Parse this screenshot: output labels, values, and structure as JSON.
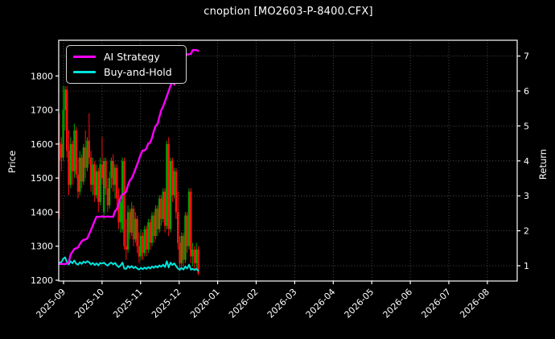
{
  "title": "cnoption [MO2603-P-8400.CFX]",
  "legend": {
    "items": [
      {
        "label": "AI Strategy",
        "color_key": "ai_line"
      },
      {
        "label": "Buy-and-Hold",
        "color_key": "buy_hold_line"
      }
    ],
    "position": "upper left"
  },
  "axes": {
    "left_label": "Price",
    "right_label": "Return",
    "price_ticks": [
      1200,
      1300,
      1400,
      1500,
      1600,
      1700,
      1800
    ],
    "return_ticks": [
      1,
      2,
      3,
      4,
      5,
      6,
      7
    ],
    "x_tick_labels": [
      "2025-09",
      "2025-10",
      "2025-11",
      "2025-12",
      "2026-01",
      "2026-02",
      "2026-03",
      "2026-04",
      "2026-05",
      "2026-06",
      "2026-07",
      "2026-08"
    ]
  },
  "colors": {
    "background": "#000000",
    "text": "#ffffff",
    "spine": "#ffffff",
    "grid": "#5f5f5f",
    "ai_line": "#ff00ff",
    "buy_hold_line": "#00e5dd",
    "candle_up": "#00a000",
    "candle_down": "#fd1010"
  },
  "chart_data": {
    "type": "candlestick+line",
    "title": "cnoption [MO2603-P-8400.CFX]",
    "xlabel": "",
    "grid": true,
    "legend_position": "upper left",
    "price_axis": {
      "label": "Price",
      "tick_values": [
        1200,
        1300,
        1400,
        1500,
        1600,
        1700,
        1800
      ],
      "approx_range": [
        1190,
        1905
      ]
    },
    "return_axis": {
      "label": "Return",
      "tick_values": [
        1,
        2,
        3,
        4,
        5,
        6,
        7
      ],
      "approx_range": [
        0.6,
        7.45
      ]
    },
    "x_axis": {
      "tick_labels": [
        "2025-09",
        "2025-10",
        "2025-11",
        "2025-12",
        "2026-01",
        "2026-02",
        "2026-03",
        "2026-04",
        "2026-05",
        "2026-06",
        "2026-07",
        "2026-08"
      ],
      "data_start": "2025-09-01",
      "data_end": "2025-12-15"
    },
    "dates": [
      "2025-09-01",
      "2025-09-02",
      "2025-09-03",
      "2025-09-04",
      "2025-09-05",
      "2025-09-08",
      "2025-09-09",
      "2025-09-10",
      "2025-09-11",
      "2025-09-12",
      "2025-09-15",
      "2025-09-16",
      "2025-09-17",
      "2025-09-18",
      "2025-09-19",
      "2025-09-22",
      "2025-09-23",
      "2025-09-24",
      "2025-09-25",
      "2025-09-26",
      "2025-09-29",
      "2025-09-30",
      "2025-10-01",
      "2025-10-02",
      "2025-10-03",
      "2025-10-06",
      "2025-10-07",
      "2025-10-08",
      "2025-10-09",
      "2025-10-10",
      "2025-10-13",
      "2025-10-14",
      "2025-10-15",
      "2025-10-16",
      "2025-10-17",
      "2025-10-20",
      "2025-10-21",
      "2025-10-22",
      "2025-10-23",
      "2025-10-24",
      "2025-10-27",
      "2025-10-28",
      "2025-10-29",
      "2025-10-30",
      "2025-10-31",
      "2025-11-03",
      "2025-11-04",
      "2025-11-05",
      "2025-11-06",
      "2025-11-07",
      "2025-11-10",
      "2025-11-11",
      "2025-11-12",
      "2025-11-13",
      "2025-11-14",
      "2025-11-17",
      "2025-11-18",
      "2025-11-19",
      "2025-11-20",
      "2025-11-21",
      "2025-11-24",
      "2025-11-25",
      "2025-11-26",
      "2025-11-27",
      "2025-11-28",
      "2025-12-01",
      "2025-12-02",
      "2025-12-03",
      "2025-12-04",
      "2025-12-05",
      "2025-12-08",
      "2025-12-09",
      "2025-12-10",
      "2025-12-11",
      "2025-12-12",
      "2025-12-15"
    ],
    "candles_ohlc": [
      [
        1605,
        1690,
        1380,
        1550
      ],
      [
        1600,
        1620,
        1520,
        1560
      ],
      [
        1560,
        1770,
        1550,
        1700
      ],
      [
        1700,
        1770,
        1640,
        1760
      ],
      [
        1760,
        1770,
        1560,
        1580
      ],
      [
        1580,
        1640,
        1450,
        1480
      ],
      [
        1480,
        1620,
        1470,
        1600
      ],
      [
        1600,
        1610,
        1480,
        1520
      ],
      [
        1520,
        1660,
        1500,
        1640
      ],
      [
        1640,
        1650,
        1500,
        1510
      ],
      [
        1510,
        1560,
        1440,
        1460
      ],
      [
        1460,
        1580,
        1450,
        1560
      ],
      [
        1560,
        1570,
        1470,
        1490
      ],
      [
        1490,
        1600,
        1480,
        1590
      ],
      [
        1590,
        1640,
        1500,
        1530
      ],
      [
        1530,
        1620,
        1520,
        1610
      ],
      [
        1610,
        1690,
        1540,
        1560
      ],
      [
        1560,
        1580,
        1460,
        1480
      ],
      [
        1480,
        1560,
        1450,
        1540
      ],
      [
        1540,
        1550,
        1430,
        1450
      ],
      [
        1450,
        1540,
        1440,
        1520
      ],
      [
        1520,
        1530,
        1400,
        1430
      ],
      [
        1430,
        1560,
        1420,
        1540
      ],
      [
        1540,
        1620,
        1480,
        1500
      ],
      [
        1400,
        1560,
        1380,
        1550
      ],
      [
        1550,
        1560,
        1450,
        1470
      ],
      [
        1470,
        1500,
        1400,
        1420
      ],
      [
        1420,
        1520,
        1410,
        1500
      ],
      [
        1500,
        1560,
        1470,
        1550
      ],
      [
        1550,
        1570,
        1460,
        1480
      ],
      [
        1480,
        1540,
        1440,
        1530
      ],
      [
        1530,
        1540,
        1420,
        1440
      ],
      [
        1440,
        1470,
        1350,
        1370
      ],
      [
        1370,
        1450,
        1340,
        1430
      ],
      [
        1350,
        1560,
        1340,
        1550
      ],
      [
        1550,
        1560,
        1290,
        1300
      ],
      [
        1300,
        1380,
        1260,
        1290
      ],
      [
        1290,
        1420,
        1280,
        1400
      ],
      [
        1400,
        1410,
        1320,
        1340
      ],
      [
        1340,
        1430,
        1330,
        1410
      ],
      [
        1410,
        1420,
        1300,
        1320
      ],
      [
        1320,
        1400,
        1310,
        1380
      ],
      [
        1380,
        1390,
        1280,
        1300
      ],
      [
        1300,
        1340,
        1250,
        1270
      ],
      [
        1270,
        1350,
        1260,
        1330
      ],
      [
        1330,
        1340,
        1260,
        1280
      ],
      [
        1280,
        1360,
        1270,
        1350
      ],
      [
        1350,
        1360,
        1270,
        1290
      ],
      [
        1290,
        1380,
        1280,
        1370
      ],
      [
        1370,
        1380,
        1290,
        1310
      ],
      [
        1310,
        1400,
        1300,
        1390
      ],
      [
        1390,
        1400,
        1310,
        1330
      ],
      [
        1330,
        1420,
        1320,
        1410
      ],
      [
        1410,
        1420,
        1330,
        1350
      ],
      [
        1350,
        1450,
        1340,
        1440
      ],
      [
        1440,
        1450,
        1360,
        1380
      ],
      [
        1380,
        1470,
        1370,
        1460
      ],
      [
        1460,
        1470,
        1340,
        1360
      ],
      [
        1360,
        1610,
        1350,
        1600
      ],
      [
        1600,
        1620,
        1330,
        1350
      ],
      [
        1350,
        1560,
        1340,
        1550
      ],
      [
        1550,
        1560,
        1430,
        1450
      ],
      [
        1450,
        1530,
        1440,
        1520
      ],
      [
        1520,
        1530,
        1380,
        1400
      ],
      [
        1400,
        1460,
        1290,
        1310
      ],
      [
        1310,
        1330,
        1230,
        1250
      ],
      [
        1250,
        1340,
        1240,
        1330
      ],
      [
        1330,
        1340,
        1240,
        1260
      ],
      [
        1260,
        1400,
        1250,
        1390
      ],
      [
        1390,
        1400,
        1280,
        1300
      ],
      [
        1300,
        1470,
        1290,
        1460
      ],
      [
        1460,
        1470,
        1250,
        1270
      ],
      [
        1270,
        1310,
        1240,
        1290
      ],
      [
        1290,
        1300,
        1230,
        1250
      ],
      [
        1250,
        1310,
        1230,
        1290
      ],
      [
        1290,
        1300,
        1215,
        1220
      ]
    ],
    "series": [
      {
        "name": "AI Strategy",
        "axis": "return",
        "color_key": "ai_line",
        "values": [
          1.05,
          1.05,
          1.05,
          1.05,
          1.06,
          1.1,
          1.32,
          1.4,
          1.48,
          1.5,
          1.52,
          1.62,
          1.7,
          1.74,
          1.75,
          1.78,
          1.9,
          2.02,
          2.15,
          2.28,
          2.4,
          2.4,
          2.4,
          2.41,
          2.4,
          2.4,
          2.41,
          2.4,
          2.4,
          2.4,
          2.56,
          2.62,
          2.78,
          2.95,
          3.05,
          3.06,
          3.12,
          3.3,
          3.44,
          3.5,
          3.62,
          3.76,
          3.9,
          4.05,
          4.2,
          4.3,
          4.3,
          4.36,
          4.5,
          4.52,
          4.66,
          4.86,
          5.0,
          5.06,
          5.26,
          5.45,
          5.56,
          5.7,
          5.85,
          6.0,
          6.15,
          6.3,
          6.18,
          6.45,
          6.55,
          6.35,
          6.6,
          6.8,
          7.0,
          7.05,
          7.05,
          7.06,
          7.17,
          7.17,
          7.17,
          7.15
        ]
      },
      {
        "name": "Buy-and-Hold",
        "axis": "return",
        "color_key": "buy_hold_line",
        "values": [
          1.09,
          1.1,
          1.2,
          1.24,
          1.11,
          1.04,
          1.13,
          1.07,
          1.15,
          1.06,
          1.03,
          1.1,
          1.05,
          1.12,
          1.08,
          1.13,
          1.1,
          1.04,
          1.08,
          1.02,
          1.07,
          1.01,
          1.08,
          1.06,
          1.09,
          1.04,
          1.0,
          1.06,
          1.09,
          1.04,
          1.08,
          1.01,
          0.96,
          1.01,
          1.09,
          0.92,
          0.91,
          0.99,
          0.94,
          0.99,
          0.93,
          0.97,
          0.92,
          0.89,
          0.94,
          0.9,
          0.95,
          0.91,
          0.96,
          0.92,
          0.98,
          0.94,
          0.99,
          0.95,
          1.01,
          0.97,
          1.03,
          0.96,
          1.13,
          0.95,
          1.09,
          1.02,
          1.07,
          0.99,
          0.92,
          0.88,
          0.94,
          0.89,
          0.98,
          0.92,
          1.03,
          0.89,
          0.91,
          0.88,
          0.91,
          0.86
        ]
      }
    ]
  }
}
